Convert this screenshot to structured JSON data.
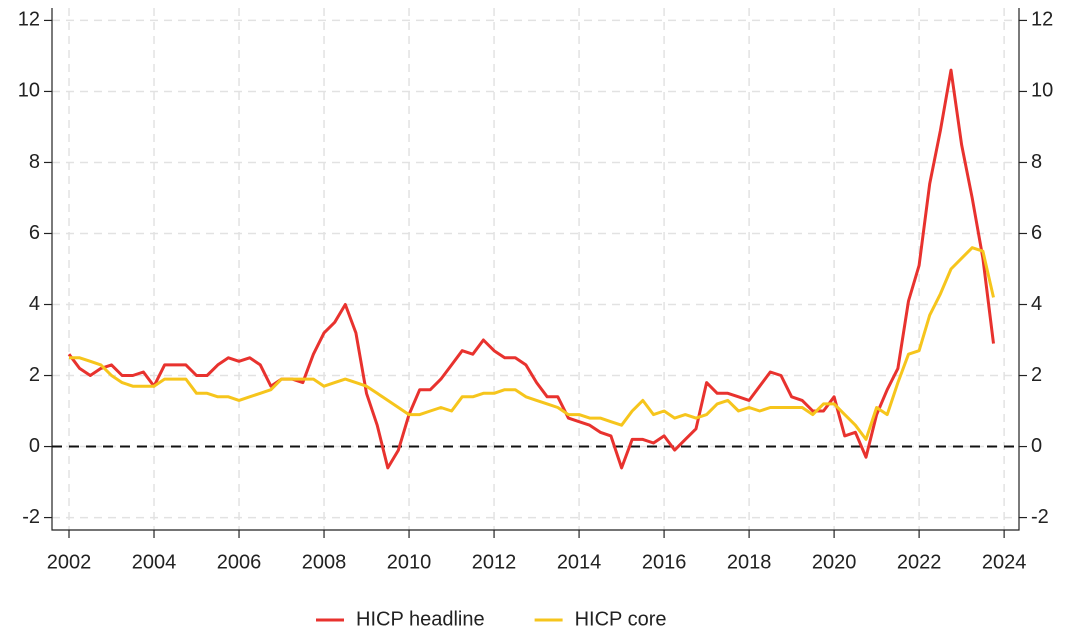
{
  "chart_data": {
    "type": "line",
    "x": [
      2002,
      2002.25,
      2002.5,
      2002.75,
      2003,
      2003.25,
      2003.5,
      2003.75,
      2004,
      2004.25,
      2004.5,
      2004.75,
      2005,
      2005.25,
      2005.5,
      2005.75,
      2006,
      2006.25,
      2006.5,
      2006.75,
      2007,
      2007.25,
      2007.5,
      2007.75,
      2008,
      2008.25,
      2008.5,
      2008.75,
      2009,
      2009.25,
      2009.5,
      2009.75,
      2010,
      2010.25,
      2010.5,
      2010.75,
      2011,
      2011.25,
      2011.5,
      2011.75,
      2012,
      2012.25,
      2012.5,
      2012.75,
      2013,
      2013.25,
      2013.5,
      2013.75,
      2014,
      2014.25,
      2014.5,
      2014.75,
      2015,
      2015.25,
      2015.5,
      2015.75,
      2016,
      2016.25,
      2016.5,
      2016.75,
      2017,
      2017.25,
      2017.5,
      2017.75,
      2018,
      2018.25,
      2018.5,
      2018.75,
      2019,
      2019.25,
      2019.5,
      2019.75,
      2020,
      2020.25,
      2020.5,
      2020.75,
      2021,
      2021.25,
      2021.5,
      2021.75,
      2022,
      2022.25,
      2022.5,
      2022.75,
      2023,
      2023.25,
      2023.5,
      2023.75
    ],
    "series": [
      {
        "name": "HICP headline",
        "color": "#e8322e",
        "values": [
          2.6,
          2.2,
          2.0,
          2.2,
          2.3,
          2.0,
          2.0,
          2.1,
          1.7,
          2.3,
          2.3,
          2.3,
          2.0,
          2.0,
          2.3,
          2.5,
          2.4,
          2.5,
          2.3,
          1.7,
          1.9,
          1.9,
          1.8,
          2.6,
          3.2,
          3.5,
          4.0,
          3.2,
          1.5,
          0.6,
          -0.6,
          -0.1,
          0.9,
          1.6,
          1.6,
          1.9,
          2.3,
          2.7,
          2.6,
          3.0,
          2.7,
          2.5,
          2.5,
          2.3,
          1.8,
          1.4,
          1.4,
          0.8,
          0.7,
          0.6,
          0.4,
          0.3,
          -0.6,
          0.2,
          0.2,
          0.1,
          0.3,
          -0.1,
          0.2,
          0.5,
          1.8,
          1.5,
          1.5,
          1.4,
          1.3,
          1.7,
          2.1,
          2.0,
          1.4,
          1.3,
          1.0,
          1.0,
          1.4,
          0.3,
          0.4,
          -0.3,
          0.9,
          1.6,
          2.2,
          4.1,
          5.1,
          7.4,
          8.9,
          10.6,
          8.5,
          7.0,
          5.3,
          2.9
        ]
      },
      {
        "name": "HICP core",
        "color": "#f6c51c",
        "values": [
          2.5,
          2.5,
          2.4,
          2.3,
          2.0,
          1.8,
          1.7,
          1.7,
          1.7,
          1.9,
          1.9,
          1.9,
          1.5,
          1.5,
          1.4,
          1.4,
          1.3,
          1.4,
          1.5,
          1.6,
          1.9,
          1.9,
          1.9,
          1.9,
          1.7,
          1.8,
          1.9,
          1.8,
          1.7,
          1.5,
          1.3,
          1.1,
          0.9,
          0.9,
          1.0,
          1.1,
          1.0,
          1.4,
          1.4,
          1.5,
          1.5,
          1.6,
          1.6,
          1.4,
          1.3,
          1.2,
          1.1,
          0.9,
          0.9,
          0.8,
          0.8,
          0.7,
          0.6,
          1.0,
          1.3,
          0.9,
          1.0,
          0.8,
          0.9,
          0.8,
          0.9,
          1.2,
          1.3,
          1.0,
          1.1,
          1.0,
          1.1,
          1.1,
          1.1,
          1.1,
          0.9,
          1.2,
          1.2,
          0.9,
          0.6,
          0.2,
          1.1,
          0.9,
          1.8,
          2.6,
          2.7,
          3.7,
          4.3,
          5.0,
          5.3,
          5.6,
          5.5,
          4.2
        ]
      }
    ],
    "xlim": [
      2001.6,
      2024.35
    ],
    "xticks": [
      2002,
      2004,
      2006,
      2008,
      2010,
      2012,
      2014,
      2016,
      2018,
      2020,
      2022,
      2024
    ],
    "ylim": [
      -2.35,
      12.35
    ],
    "yticks": [
      -2,
      0,
      2,
      4,
      6,
      8,
      10,
      12
    ],
    "y2lim": [
      -2.35,
      12.35
    ],
    "y2ticks": [
      -2,
      0,
      2,
      4,
      6,
      8,
      10,
      12
    ],
    "grid": true,
    "reference_line": 0,
    "legend": "bottom"
  }
}
